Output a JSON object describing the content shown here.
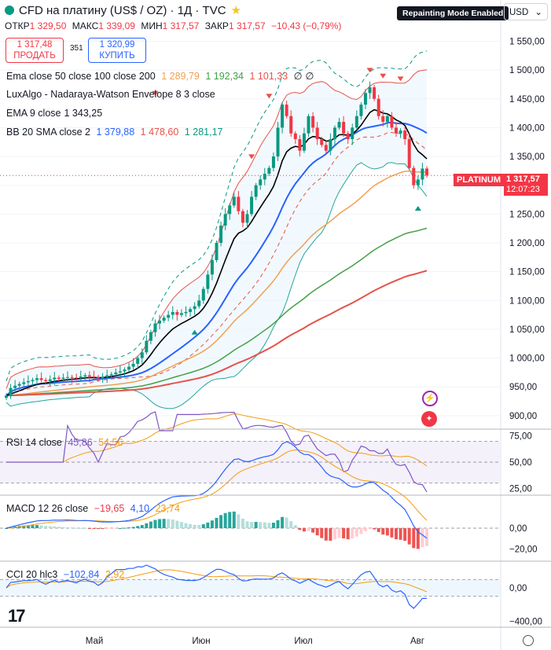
{
  "header": {
    "title": "CFD на платину (US$ / OZ) · 1Д · TVC",
    "ohlc": {
      "open_label": "ОТКР",
      "open": "1 329,50",
      "high_label": "МАКС",
      "high": "1 339,09",
      "low_label": "МИН",
      "low": "1 317,57",
      "close_label": "ЗАКР",
      "close": "1 317,57",
      "change": "−10,43 (−0,79%)"
    },
    "sell_price": "1 317,48",
    "sell_label": "ПРОДАТЬ",
    "spread": "351",
    "buy_price": "1 320,99",
    "buy_label": "КУПИТЬ",
    "repaint_badge": "Repainting Mode Enabled",
    "currency": "USD"
  },
  "indicators": {
    "ema": {
      "label": "Ema close 50 close 100 close 200",
      "v1": "1 289,79",
      "v2": "1 192,34",
      "v3": "1 101,33",
      "v4": "∅",
      "v5": "∅"
    },
    "lux": {
      "label": "LuxAlgo - Nadaraya-Watson Envelope 8 3 close"
    },
    "ema9": {
      "label": "EMA 9 close",
      "v1": "1 343,25"
    },
    "bb": {
      "label": "BB 20 SMA close 2",
      "v1": "1 379,88",
      "v2": "1 478,60",
      "v3": "1 281,17"
    },
    "rsi": {
      "label": "RSI 14 close",
      "v1": "45,86",
      "v2": "54,56"
    },
    "macd": {
      "label": "MACD 12 26 close",
      "v1": "−19,65",
      "v2": "4,10",
      "v3": "23,74"
    },
    "cci": {
      "label": "CCI 20 hlc3",
      "v1": "−102,84",
      "v2": "2,92"
    }
  },
  "price_tag": {
    "name": "PLATINUM",
    "price": "1 317,57",
    "countdown": "12:07:23"
  },
  "colors": {
    "up": "#089981",
    "down": "#f23645",
    "ema50": "#f0a050",
    "ema100": "#43a047",
    "ema200": "#e5534b",
    "ema9": "#000000",
    "bb_basis": "#2962ff",
    "bb_upper": "#e5534b",
    "bb_lower": "#26a69a",
    "rsi": "#7e57c2",
    "macd_line": "#2962ff",
    "signal": "#f59b0f",
    "cci": "#2962ff"
  },
  "chart_data": {
    "type": "candlestick",
    "price_axis": [
      "1 550,00",
      "1 500,00",
      "1 450,00",
      "1 400,00",
      "1 350,00",
      "1 300,00",
      "1 250,00",
      "1 200,00",
      "1 150,00",
      "1 100,00",
      "1 050,00",
      "1 000,00",
      "950,00",
      "900,00"
    ],
    "price_range": [
      878,
      1567
    ],
    "x_ticks": [
      "Май",
      "Июн",
      "Июл",
      "Авг"
    ],
    "rsi_axis": [
      "75,00",
      "50,00",
      "25,00"
    ],
    "rsi_range": [
      20,
      80
    ],
    "macd_axis": [
      "0,00",
      "−20,00"
    ],
    "macd_range": [
      -30,
      30
    ],
    "cci_axis": [
      "0,00",
      "−400,00"
    ],
    "cci_range": [
      -450,
      300
    ],
    "closes": [
      935,
      948,
      952,
      955,
      958,
      960,
      962,
      965,
      962,
      960,
      963,
      966,
      964,
      966,
      967,
      966,
      965,
      968,
      970,
      968,
      967,
      965,
      967,
      970,
      972,
      975,
      977,
      980,
      985,
      990,
      1000,
      1010,
      1030,
      1045,
      1060,
      1065,
      1070,
      1075,
      1080,
      1075,
      1078,
      1080,
      1085,
      1090,
      1100,
      1120,
      1145,
      1170,
      1200,
      1230,
      1250,
      1265,
      1280,
      1255,
      1235,
      1250,
      1280,
      1300,
      1310,
      1320,
      1330,
      1350,
      1400,
      1440,
      1420,
      1390,
      1380,
      1360,
      1390,
      1420,
      1400,
      1380,
      1370,
      1360,
      1380,
      1400,
      1410,
      1390,
      1380,
      1400,
      1420,
      1440,
      1460,
      1470,
      1450,
      1420,
      1410,
      1420,
      1400,
      1390,
      1395,
      1380,
      1330,
      1300,
      1310,
      1329,
      1317
    ]
  }
}
